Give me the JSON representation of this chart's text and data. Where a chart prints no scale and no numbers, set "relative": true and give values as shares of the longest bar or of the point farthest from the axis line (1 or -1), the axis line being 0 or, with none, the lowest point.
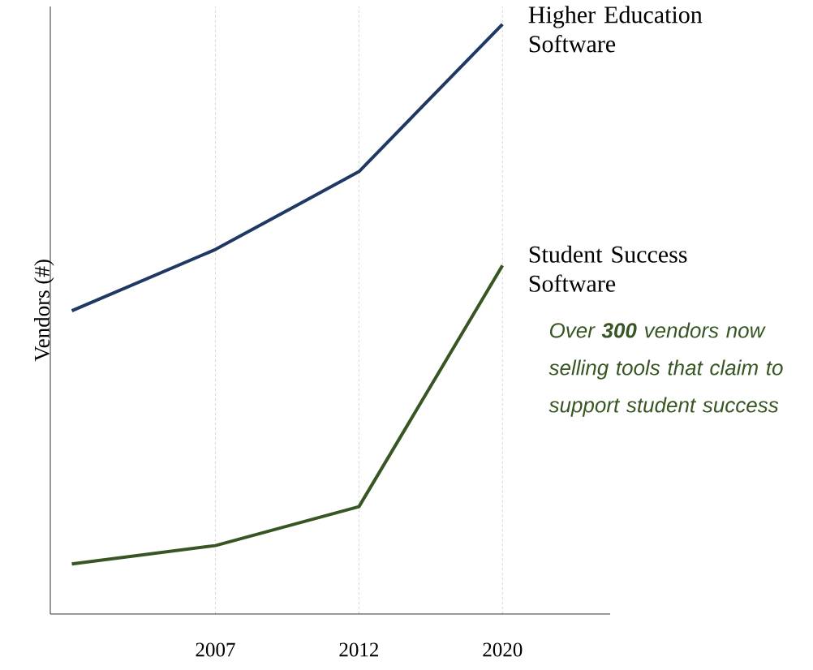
{
  "chart_data": {
    "type": "line",
    "ylabel": "Vendors (#)",
    "relative": true,
    "grid": "x",
    "categories": [
      null,
      "2007",
      "2012",
      "2020"
    ],
    "series": [
      {
        "name": "Higher Education Software",
        "color": "#1f3864",
        "values": [
          0.514,
          0.618,
          0.75,
          1
        ]
      },
      {
        "name": "Student Success Software",
        "color": "#375623",
        "values": [
          0.085,
          0.116,
          0.182,
          0.591
        ]
      }
    ],
    "annotations": [
      "Over **300** vendors now selling tools that claim to support student success"
    ]
  }
}
